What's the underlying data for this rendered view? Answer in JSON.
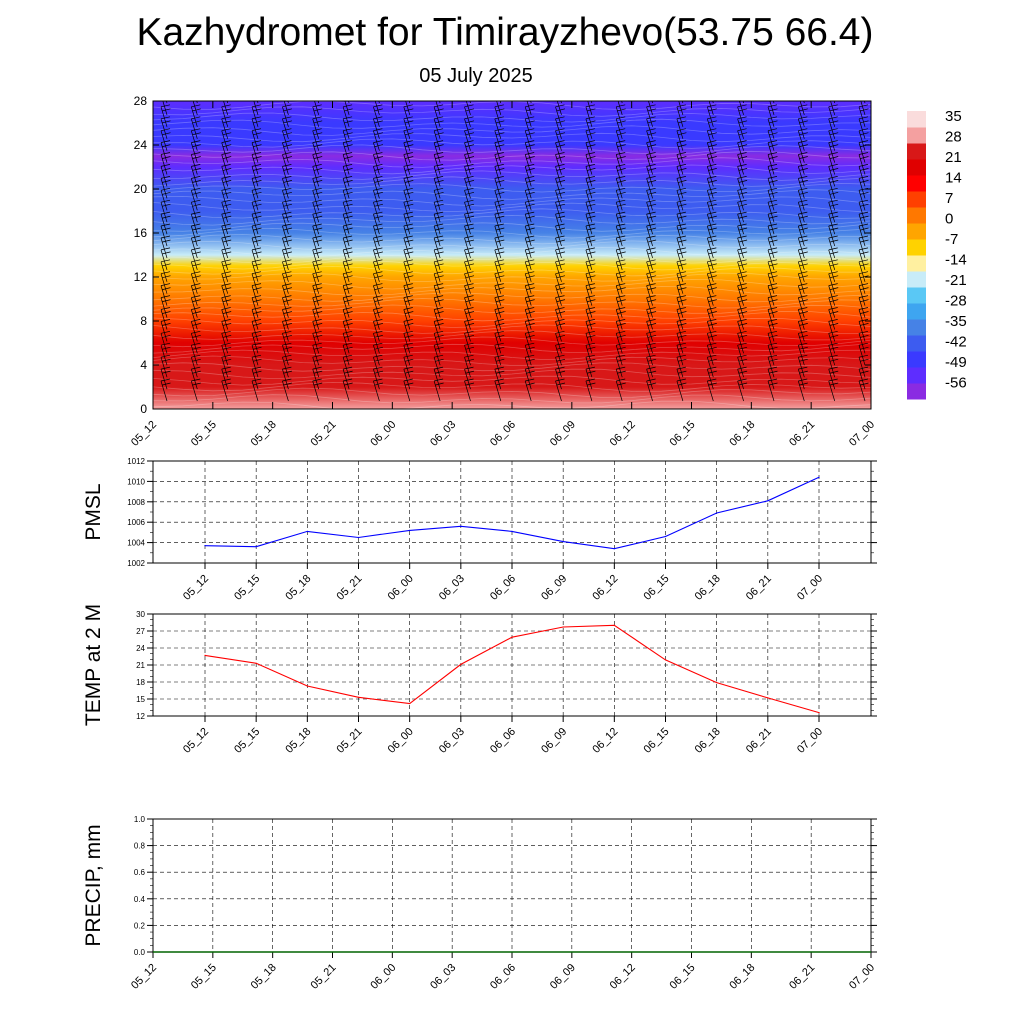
{
  "header": {
    "title": "Kazhydromet for Timirayzhevo(53.75 66.4)",
    "subtitle": "05 July 2025"
  },
  "colors": {
    "pmsl_line": "#0000ff",
    "temp_line": "#ff0000",
    "precip_line": "#006400",
    "grid": "#000000",
    "colorbar": [
      "#8a2be2",
      "#5e2dff",
      "#3a3aff",
      "#3d5cf0",
      "#4682e6",
      "#3ea5f0",
      "#5ac8f5",
      "#c8ecf8",
      "#fff0a0",
      "#ffd200",
      "#ffa500",
      "#ff7800",
      "#ff4000",
      "#ff0000",
      "#e00000",
      "#d81818",
      "#f4a0a0",
      "#fadcdc"
    ]
  },
  "chart_data": [
    {
      "type": "heatmap",
      "id": "upper_air",
      "xlabel": "",
      "ylabel": "",
      "x_ticks": [
        "05_12",
        "05_15",
        "05_18",
        "05_21",
        "06_00",
        "06_03",
        "06_06",
        "06_09",
        "06_12",
        "06_15",
        "06_18",
        "06_21",
        "07_00"
      ],
      "y_ticks": [
        0,
        4,
        8,
        12,
        16,
        20,
        24,
        28
      ],
      "ylim": [
        0,
        28
      ],
      "colorbar_labels": [
        "35",
        "28",
        "21",
        "14",
        "7",
        "0",
        "-7",
        "-14",
        "-21",
        "-28",
        "-35",
        "-42",
        "-49",
        "-56"
      ],
      "profile_height_km": [
        0,
        2,
        4,
        6,
        8,
        10,
        12,
        13,
        14,
        16,
        18,
        20,
        22,
        23,
        24,
        26,
        28
      ],
      "profile_temp_c": [
        33,
        30,
        26,
        20,
        12,
        5,
        0,
        -8,
        -22,
        -35,
        -42,
        -45,
        -55,
        -58,
        -50,
        -48,
        -55
      ],
      "wind_barbs": true
    },
    {
      "type": "line",
      "id": "pmsl",
      "ylabel": "PMSL",
      "categories": [
        "05_12",
        "05_15",
        "05_18",
        "05_21",
        "06_00",
        "06_03",
        "06_06",
        "06_09",
        "06_12",
        "06_15",
        "06_18",
        "06_21",
        "07_00"
      ],
      "series": [
        {
          "values": [
            1003.7,
            1003.6,
            1005.1,
            1004.5,
            1005.2,
            1005.6,
            1005.1,
            1004.1,
            1003.4,
            1004.6,
            1006.9,
            1008.1,
            1010.4
          ]
        }
      ],
      "ylim": [
        1002,
        1012
      ],
      "y_ticks": [
        1002,
        1004,
        1006,
        1008,
        1010,
        1012
      ],
      "grid": true
    },
    {
      "type": "line",
      "id": "temp2m",
      "ylabel": "TEMP at 2 M",
      "categories": [
        "05_12",
        "05_15",
        "05_18",
        "05_21",
        "06_00",
        "06_03",
        "06_06",
        "06_09",
        "06_12",
        "06_15",
        "06_18",
        "06_21",
        "07_00"
      ],
      "series": [
        {
          "values": [
            22.7,
            21.3,
            17.3,
            15.3,
            14.2,
            21.1,
            25.9,
            27.7,
            28.0,
            21.9,
            17.9,
            15.2,
            12.6
          ]
        }
      ],
      "ylim": [
        12,
        30
      ],
      "y_ticks": [
        12,
        15,
        18,
        21,
        24,
        27,
        30
      ],
      "grid": true
    },
    {
      "type": "line",
      "id": "precip",
      "ylabel": "PRECIP, mm",
      "categories": [
        "05_12",
        "05_15",
        "05_18",
        "05_21",
        "06_00",
        "06_03",
        "06_06",
        "06_09",
        "06_12",
        "06_15",
        "06_18",
        "06_21",
        "07_00"
      ],
      "series": [
        {
          "values": [
            0,
            0,
            0,
            0,
            0,
            0,
            0,
            0,
            0,
            0,
            0,
            0,
            0
          ]
        }
      ],
      "ylim": [
        0,
        1
      ],
      "y_ticks": [
        "0.0",
        "0.2",
        "0.4",
        "0.6",
        "0.8",
        "1.0"
      ],
      "grid": true
    }
  ]
}
